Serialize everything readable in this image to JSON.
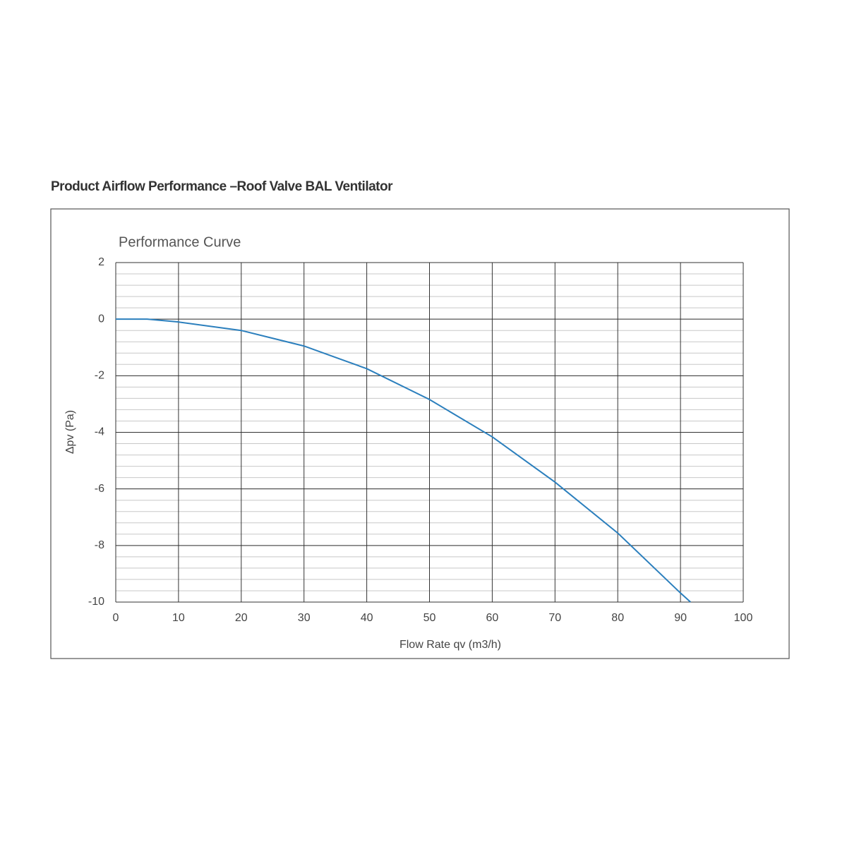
{
  "header": {
    "title": "Product Airflow Performance –Roof Valve BAL Ventilator"
  },
  "chart_data": {
    "type": "line",
    "title": "Performance Curve",
    "x_label": "Flow Rate qv (m3/h)",
    "y_label": "Δpv (Pa)",
    "x": [
      0,
      5,
      10,
      20,
      30,
      40,
      50,
      60,
      70,
      80,
      90,
      91.6
    ],
    "series": [
      {
        "color": "#2b7fbd",
        "values": [
          0,
          0,
          -0.1,
          -0.4,
          -0.95,
          -1.75,
          -2.84,
          -4.16,
          -5.76,
          -7.56,
          -9.68,
          -10
        ]
      }
    ],
    "xlim": [
      0,
      100
    ],
    "xticks": [
      0,
      10,
      20,
      30,
      40,
      50,
      60,
      70,
      80,
      90,
      100
    ],
    "ylim": [
      -10,
      2
    ],
    "yticks": [
      2,
      0,
      -2,
      -4,
      -6,
      -8,
      -10
    ],
    "grid": true,
    "minor_grid_step": 0.4
  }
}
